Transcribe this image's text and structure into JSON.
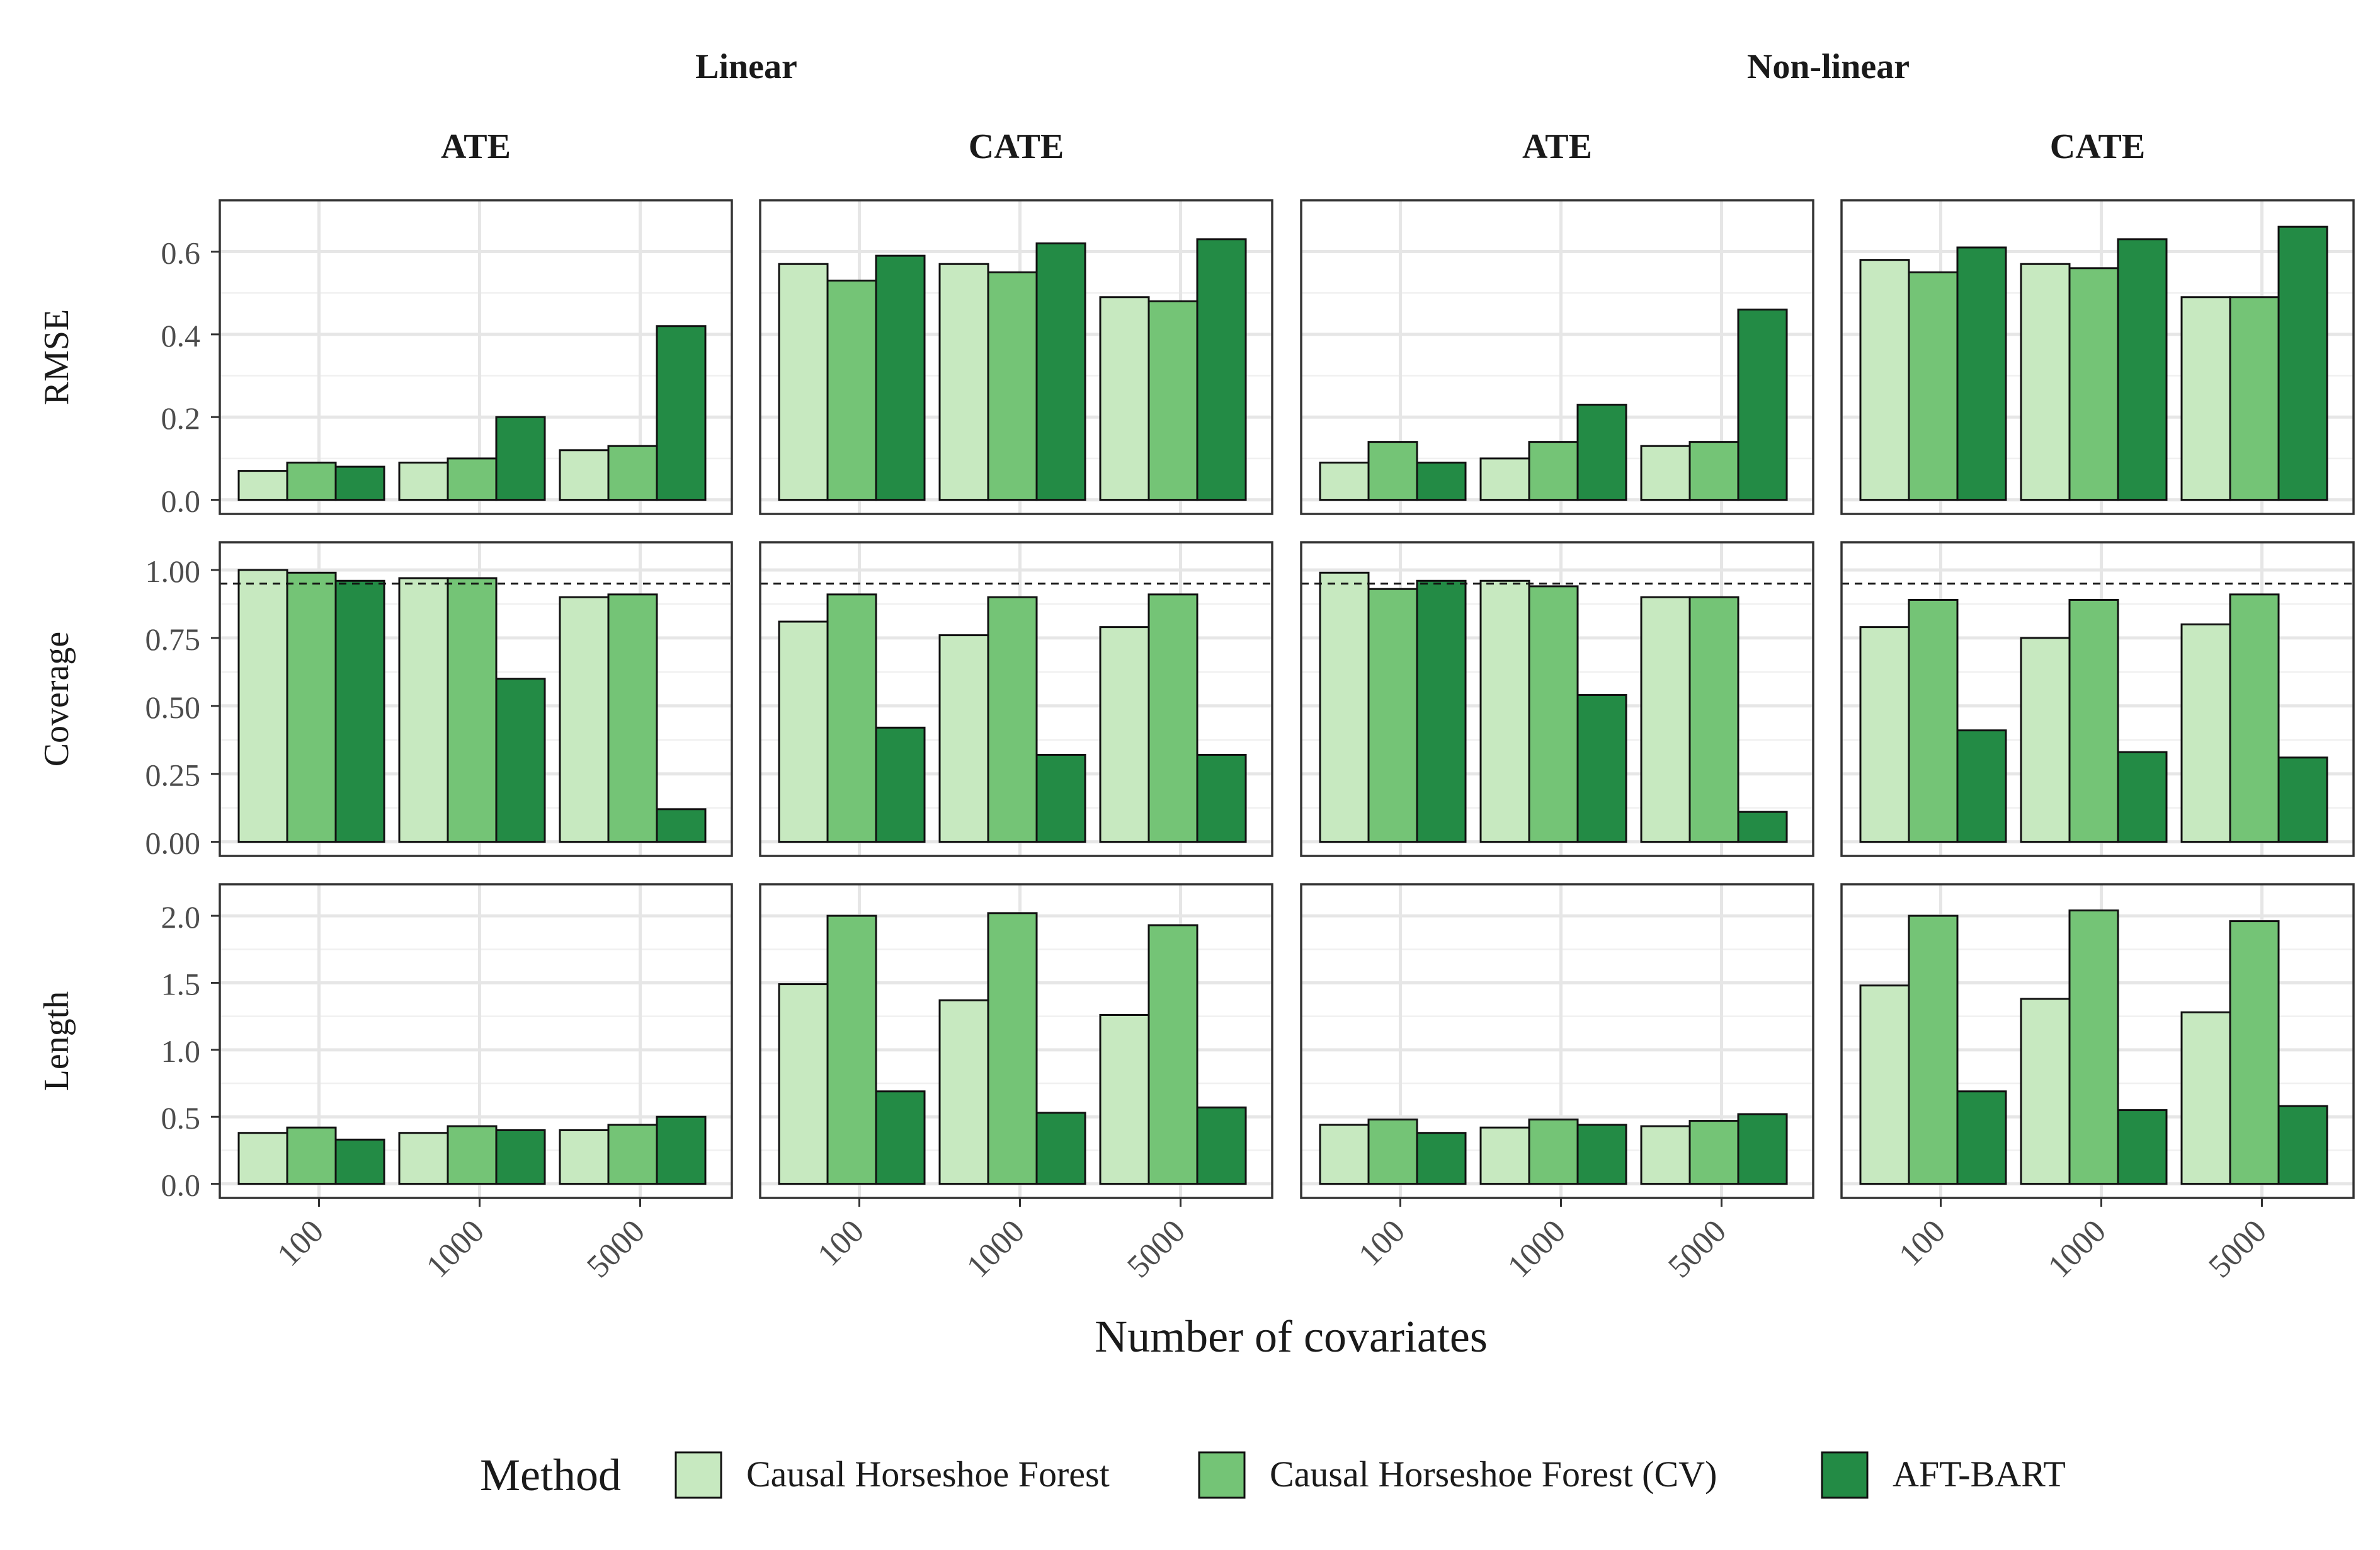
{
  "chart_data": {
    "type": "bar",
    "facet_rows": [
      "RMSE",
      "Coverage",
      "Length"
    ],
    "facet_groups": [
      {
        "label": "Linear",
        "cols": [
          "ATE",
          "CATE"
        ]
      },
      {
        "label": "Non-linear",
        "cols": [
          "ATE",
          "CATE"
        ]
      }
    ],
    "categories": [
      "100",
      "1000",
      "5000"
    ],
    "xlabel": "Number of covariates",
    "legend": {
      "title": "Method",
      "position": "bottom",
      "entries": [
        "Causal Horseshoe Forest",
        "Causal Horseshoe Forest (CV)",
        "AFT-BART"
      ]
    },
    "colors": [
      "#c7e9c0",
      "#74c476",
      "#238b45"
    ],
    "grid": true,
    "rows": [
      {
        "name": "RMSE",
        "ylim": [
          0,
          0.69
        ],
        "ticks": [
          0.0,
          0.2,
          0.4,
          0.6
        ],
        "tick_labels": [
          "0.0",
          "0.2",
          "0.4",
          "0.6"
        ],
        "reference_line": null,
        "panels": [
          [
            [
              0.07,
              0.09,
              0.08
            ],
            [
              0.09,
              0.1,
              0.2
            ],
            [
              0.12,
              0.13,
              0.42
            ]
          ],
          [
            [
              0.57,
              0.53,
              0.59
            ],
            [
              0.57,
              0.55,
              0.62
            ],
            [
              0.49,
              0.48,
              0.63
            ]
          ],
          [
            [
              0.09,
              0.14,
              0.09
            ],
            [
              0.1,
              0.14,
              0.23
            ],
            [
              0.13,
              0.14,
              0.46
            ]
          ],
          [
            [
              0.58,
              0.55,
              0.61
            ],
            [
              0.57,
              0.56,
              0.63
            ],
            [
              0.49,
              0.49,
              0.66
            ]
          ]
        ]
      },
      {
        "name": "Coverage",
        "ylim": [
          0,
          1.05
        ],
        "ticks": [
          0.0,
          0.25,
          0.5,
          0.75,
          1.0
        ],
        "tick_labels": [
          "0.00",
          "0.25",
          "0.50",
          "0.75",
          "1.00"
        ],
        "reference_line": 0.95,
        "panels": [
          [
            [
              1.0,
              0.99,
              0.96
            ],
            [
              0.97,
              0.97,
              0.6
            ],
            [
              0.9,
              0.91,
              0.12
            ]
          ],
          [
            [
              0.81,
              0.91,
              0.42
            ],
            [
              0.76,
              0.9,
              0.32
            ],
            [
              0.79,
              0.91,
              0.32
            ]
          ],
          [
            [
              0.99,
              0.93,
              0.96
            ],
            [
              0.96,
              0.94,
              0.54
            ],
            [
              0.9,
              0.9,
              0.11
            ]
          ],
          [
            [
              0.79,
              0.89,
              0.41
            ],
            [
              0.75,
              0.89,
              0.33
            ],
            [
              0.8,
              0.91,
              0.31
            ]
          ]
        ]
      },
      {
        "name": "Length",
        "ylim": [
          0,
          2.13
        ],
        "ticks": [
          0.0,
          0.5,
          1.0,
          1.5,
          2.0
        ],
        "tick_labels": [
          "0.0",
          "0.5",
          "1.0",
          "1.5",
          "2.0"
        ],
        "reference_line": null,
        "panels": [
          [
            [
              0.38,
              0.42,
              0.33
            ],
            [
              0.38,
              0.43,
              0.4
            ],
            [
              0.4,
              0.44,
              0.5
            ]
          ],
          [
            [
              1.49,
              2.0,
              0.69
            ],
            [
              1.37,
              2.02,
              0.53
            ],
            [
              1.26,
              1.93,
              0.57
            ]
          ],
          [
            [
              0.44,
              0.48,
              0.38
            ],
            [
              0.42,
              0.48,
              0.44
            ],
            [
              0.43,
              0.47,
              0.52
            ]
          ],
          [
            [
              1.48,
              2.0,
              0.69
            ],
            [
              1.38,
              2.04,
              0.55
            ],
            [
              1.28,
              1.96,
              0.58
            ]
          ]
        ]
      }
    ]
  }
}
